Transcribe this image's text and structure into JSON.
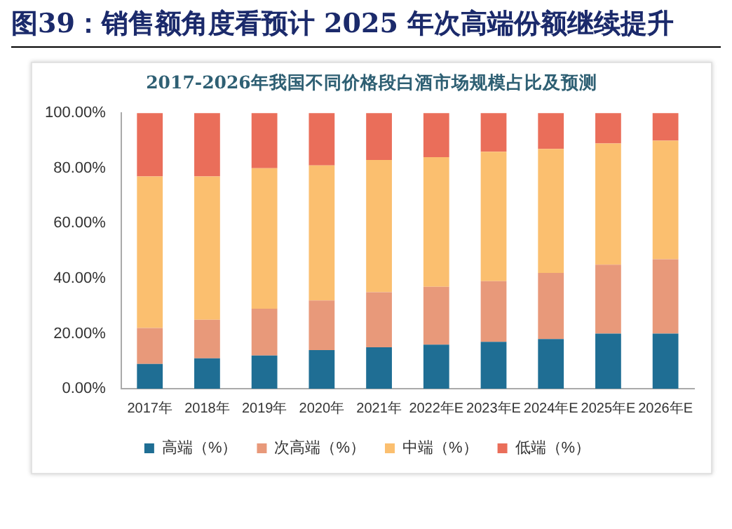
{
  "chart_data": {
    "type": "bar",
    "title": "图39：销售额角度看预计 2025 年次高端份额继续提升",
    "subtitle": "2017-2026年我国不同价格段白酒市场规模占比及预测",
    "categories": [
      "2017年",
      "2018年",
      "2019年",
      "2020年",
      "2021年",
      "2022年E",
      "2023年E",
      "2024年E",
      "2025年E",
      "2026年E"
    ],
    "stacked": true,
    "series": [
      {
        "name": "高端（%）",
        "color": "#1f6e94",
        "values": [
          9,
          11,
          12,
          14,
          15,
          16,
          17,
          18,
          20,
          20
        ]
      },
      {
        "name": "次高端（%）",
        "color": "#e8997a",
        "values": [
          13,
          14,
          17,
          18,
          20,
          21,
          22,
          24,
          25,
          27
        ]
      },
      {
        "name": "中端（%）",
        "color": "#fbbf6f",
        "values": [
          55,
          52,
          51,
          49,
          48,
          47,
          47,
          45,
          44,
          43
        ]
      },
      {
        "name": "低端（%）",
        "color": "#ea6e5a",
        "values": [
          23,
          23,
          20,
          19,
          17,
          16,
          14,
          13,
          11,
          10
        ]
      }
    ],
    "ylim": [
      0,
      100
    ],
    "yticks": [
      {
        "value": 0,
        "label": "0.00%"
      },
      {
        "value": 20,
        "label": "20.00%"
      },
      {
        "value": 40,
        "label": "40.00%"
      },
      {
        "value": 60,
        "label": "60.00%"
      },
      {
        "value": 80,
        "label": "80.00%"
      },
      {
        "value": 100,
        "label": "100.00%"
      }
    ],
    "grid": false,
    "legend": "bottom"
  }
}
